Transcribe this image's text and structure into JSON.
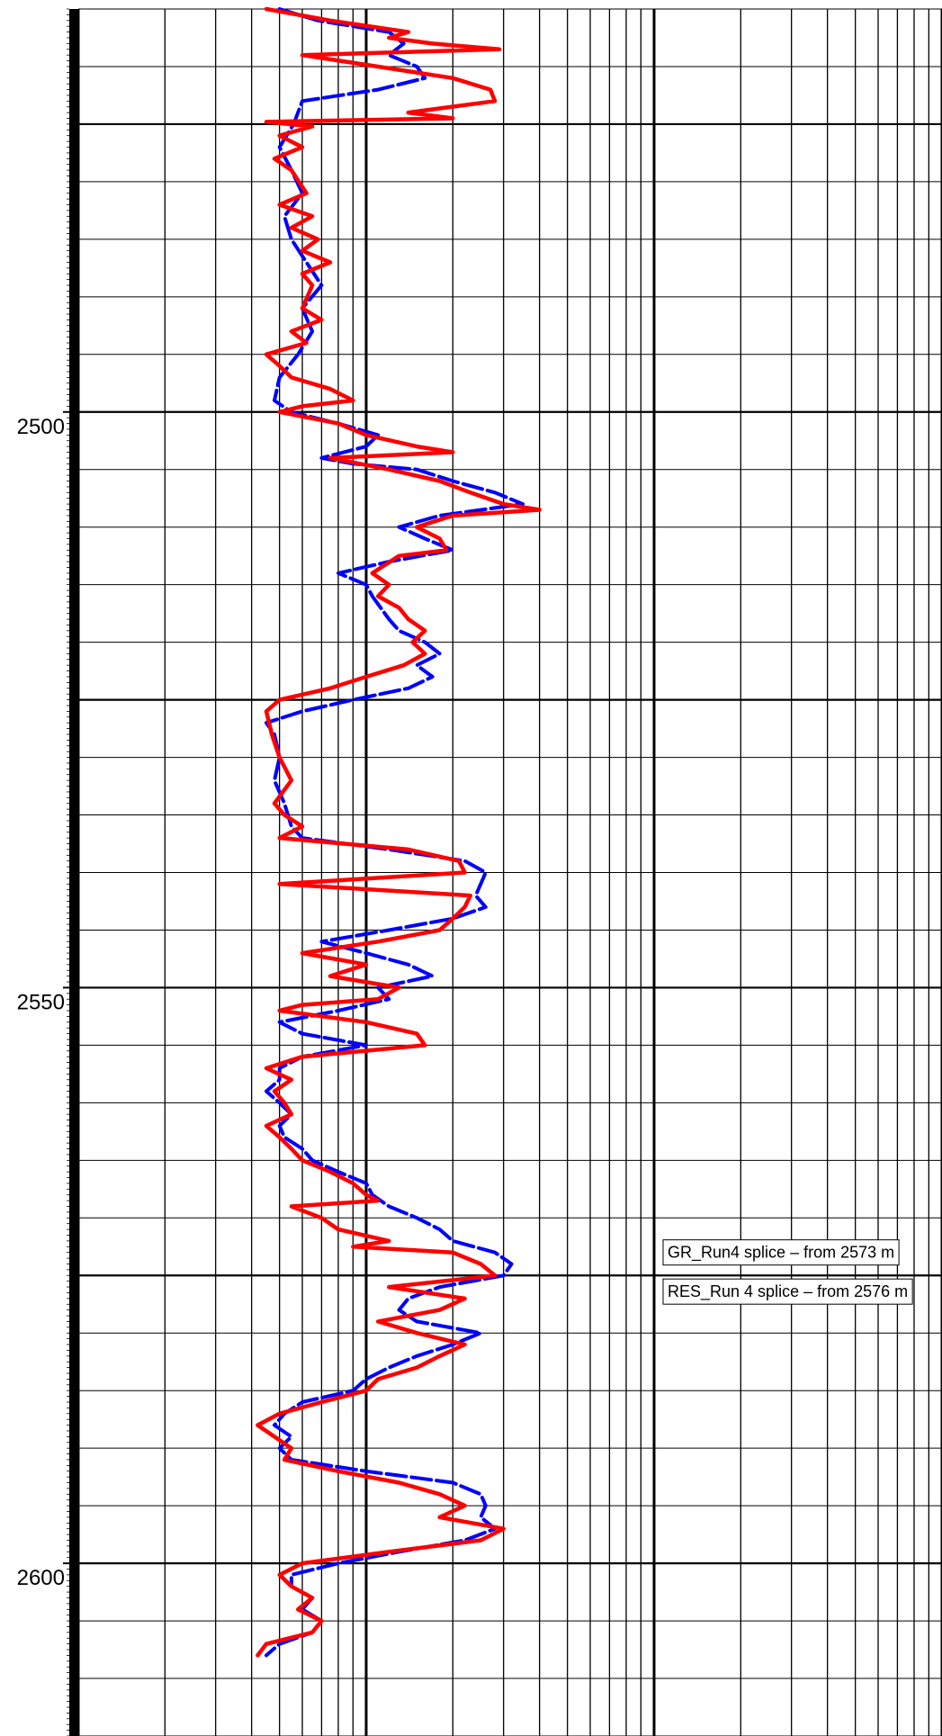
{
  "chart_data": {
    "type": "line",
    "title": "",
    "xlabel": "",
    "ylabel": "",
    "x_scale": "log",
    "xlim": [
      1,
      1000
    ],
    "ylim": [
      2465,
      2615
    ],
    "y_inverted": true,
    "y_ticks": [
      2500,
      2550,
      2600
    ],
    "grid": true,
    "annotations": [
      {
        "text": "GR_Run4  splice – from 2573 m",
        "x": 100,
        "y": 2573
      },
      {
        "text": "RES_Run 4 splice – from 2576 m",
        "x": 100,
        "y": 2576.4
      }
    ],
    "series": [
      {
        "color": "#0000ff",
        "style": "dashed",
        "points": [
          [
            5.0,
            2465
          ],
          [
            6.8,
            2466
          ],
          [
            12.0,
            2467
          ],
          [
            13.5,
            2468
          ],
          [
            12.0,
            2469
          ],
          [
            15.0,
            2470
          ],
          [
            16.0,
            2471
          ],
          [
            11.0,
            2472
          ],
          [
            6.0,
            2473
          ],
          [
            5.6,
            2475
          ],
          [
            5.0,
            2477
          ],
          [
            5.5,
            2479
          ],
          [
            6.0,
            2481
          ],
          [
            5.2,
            2483
          ],
          [
            5.5,
            2485
          ],
          [
            6.2,
            2487
          ],
          [
            7.0,
            2489
          ],
          [
            6.0,
            2491
          ],
          [
            6.5,
            2493
          ],
          [
            5.8,
            2495
          ],
          [
            5.0,
            2497
          ],
          [
            4.8,
            2499
          ],
          [
            5.5,
            2500
          ],
          [
            8.0,
            2501
          ],
          [
            11.0,
            2502
          ],
          [
            10.0,
            2503
          ],
          [
            7.0,
            2504
          ],
          [
            9.0,
            2504.5
          ],
          [
            15.0,
            2505
          ],
          [
            20.0,
            2506
          ],
          [
            28.0,
            2507
          ],
          [
            35.0,
            2508
          ],
          [
            18.0,
            2509
          ],
          [
            13.0,
            2510
          ],
          [
            16.0,
            2511
          ],
          [
            20.0,
            2512
          ],
          [
            12.0,
            2513
          ],
          [
            8.0,
            2514
          ],
          [
            10.0,
            2515
          ],
          [
            10.5,
            2516
          ],
          [
            12.0,
            2518
          ],
          [
            13.0,
            2519
          ],
          [
            16.0,
            2520
          ],
          [
            18.0,
            2521
          ],
          [
            15.0,
            2522
          ],
          [
            17.0,
            2523
          ],
          [
            14.0,
            2524
          ],
          [
            9.0,
            2525
          ],
          [
            6.0,
            2526
          ],
          [
            4.5,
            2527
          ],
          [
            4.8,
            2528
          ],
          [
            5.0,
            2530
          ],
          [
            4.8,
            2532
          ],
          [
            5.2,
            2534
          ],
          [
            5.5,
            2536
          ],
          [
            6.0,
            2537
          ],
          [
            12.0,
            2538
          ],
          [
            22.0,
            2539
          ],
          [
            26.0,
            2540
          ],
          [
            25.0,
            2541
          ],
          [
            24.0,
            2542
          ],
          [
            26.0,
            2543
          ],
          [
            20.0,
            2544
          ],
          [
            12.0,
            2545
          ],
          [
            7.0,
            2546
          ],
          [
            10.0,
            2547
          ],
          [
            14.0,
            2548
          ],
          [
            17.0,
            2549
          ],
          [
            11.0,
            2550
          ],
          [
            12.0,
            2551
          ],
          [
            8.0,
            2552
          ],
          [
            5.0,
            2553
          ],
          [
            6.0,
            2554
          ],
          [
            10.0,
            2555
          ],
          [
            6.0,
            2556
          ],
          [
            5.0,
            2557
          ],
          [
            5.0,
            2558
          ],
          [
            4.5,
            2559
          ],
          [
            5.0,
            2560
          ],
          [
            5.5,
            2561
          ],
          [
            5.0,
            2562
          ],
          [
            5.2,
            2563
          ],
          [
            6.0,
            2564
          ],
          [
            6.5,
            2565
          ],
          [
            8.0,
            2566
          ],
          [
            10.0,
            2567
          ],
          [
            10.5,
            2568
          ],
          [
            12.0,
            2569
          ],
          [
            15.0,
            2570
          ],
          [
            18.0,
            2571
          ],
          [
            20.0,
            2572
          ],
          [
            28.0,
            2573
          ],
          [
            32.0,
            2574
          ],
          [
            30.0,
            2575
          ],
          [
            18.0,
            2576
          ],
          [
            14.0,
            2577
          ],
          [
            13.0,
            2578
          ],
          [
            15.0,
            2579
          ],
          [
            25.0,
            2580
          ],
          [
            20.0,
            2581
          ],
          [
            15.0,
            2582
          ],
          [
            12.0,
            2583
          ],
          [
            10.0,
            2584
          ],
          [
            9.0,
            2585
          ],
          [
            6.0,
            2586
          ],
          [
            5.2,
            2587
          ],
          [
            4.8,
            2588
          ],
          [
            5.5,
            2589
          ],
          [
            5.0,
            2590
          ],
          [
            5.5,
            2591
          ],
          [
            10.0,
            2592
          ],
          [
            20.0,
            2593
          ],
          [
            25.0,
            2594
          ],
          [
            26.0,
            2595
          ],
          [
            25.0,
            2596
          ],
          [
            28.0,
            2597
          ],
          [
            22.0,
            2598
          ],
          [
            13.0,
            2599
          ],
          [
            8.0,
            2600
          ],
          [
            5.5,
            2601
          ],
          [
            5.5,
            2602
          ],
          [
            6.5,
            2603
          ],
          [
            6.0,
            2604
          ],
          [
            7.0,
            2605
          ],
          [
            6.5,
            2606
          ],
          [
            5.0,
            2607
          ],
          [
            4.5,
            2608
          ]
        ]
      },
      {
        "color": "#ff0000",
        "style": "solid",
        "points": [
          [
            4.5,
            2465
          ],
          [
            7.5,
            2466
          ],
          [
            14.0,
            2467
          ],
          [
            12.0,
            2467.5
          ],
          [
            17.0,
            2468
          ],
          [
            29.0,
            2468.5
          ],
          [
            6.0,
            2469
          ],
          [
            11.0,
            2470
          ],
          [
            20.0,
            2471
          ],
          [
            27.0,
            2472
          ],
          [
            28.0,
            2473
          ],
          [
            14.0,
            2474
          ],
          [
            20.0,
            2474.5
          ],
          [
            4.5,
            2474.8
          ],
          [
            6.5,
            2475.2
          ],
          [
            5.0,
            2476
          ],
          [
            6.0,
            2477
          ],
          [
            4.8,
            2478
          ],
          [
            5.5,
            2479
          ],
          [
            6.2,
            2481
          ],
          [
            5.0,
            2482
          ],
          [
            6.5,
            2483
          ],
          [
            5.5,
            2484
          ],
          [
            6.8,
            2485
          ],
          [
            6.0,
            2486
          ],
          [
            7.5,
            2487
          ],
          [
            6.0,
            2488
          ],
          [
            6.5,
            2489
          ],
          [
            6.0,
            2491
          ],
          [
            7.0,
            2492
          ],
          [
            5.5,
            2493
          ],
          [
            6.2,
            2494
          ],
          [
            4.5,
            2495
          ],
          [
            5.0,
            2496
          ],
          [
            5.5,
            2497
          ],
          [
            7.5,
            2498
          ],
          [
            9.0,
            2499
          ],
          [
            6.0,
            2499.5
          ],
          [
            5.0,
            2500
          ],
          [
            8.0,
            2501
          ],
          [
            10.0,
            2502
          ],
          [
            15.0,
            2503
          ],
          [
            20.0,
            2503.5
          ],
          [
            7.5,
            2504
          ],
          [
            12.0,
            2505
          ],
          [
            18.0,
            2506
          ],
          [
            23.0,
            2507
          ],
          [
            30.0,
            2508
          ],
          [
            40.0,
            2508.5
          ],
          [
            20.0,
            2509
          ],
          [
            15.0,
            2510
          ],
          [
            18.0,
            2511
          ],
          [
            19.0,
            2512
          ],
          [
            13.0,
            2512.5
          ],
          [
            10.5,
            2514
          ],
          [
            12.0,
            2515
          ],
          [
            11.0,
            2516
          ],
          [
            13.0,
            2517
          ],
          [
            14.0,
            2518
          ],
          [
            16.0,
            2519
          ],
          [
            14.5,
            2520
          ],
          [
            16.0,
            2521
          ],
          [
            13.5,
            2522
          ],
          [
            10.0,
            2523
          ],
          [
            7.5,
            2524
          ],
          [
            5.0,
            2525
          ],
          [
            4.5,
            2526
          ],
          [
            4.7,
            2528
          ],
          [
            5.0,
            2530
          ],
          [
            5.5,
            2532
          ],
          [
            4.8,
            2534
          ],
          [
            5.2,
            2535
          ],
          [
            6.0,
            2536
          ],
          [
            5.0,
            2537
          ],
          [
            14.0,
            2538
          ],
          [
            21.0,
            2539
          ],
          [
            22.0,
            2540
          ],
          [
            5.0,
            2541
          ],
          [
            23.0,
            2542
          ],
          [
            22.0,
            2543
          ],
          [
            20.0,
            2544
          ],
          [
            18.0,
            2545
          ],
          [
            11.0,
            2546
          ],
          [
            6.0,
            2547
          ],
          [
            10.0,
            2548
          ],
          [
            7.5,
            2549
          ],
          [
            13.0,
            2550
          ],
          [
            11.0,
            2551
          ],
          [
            6.0,
            2551.5
          ],
          [
            5.0,
            2552
          ],
          [
            10.0,
            2553
          ],
          [
            15.0,
            2554
          ],
          [
            16.0,
            2555
          ],
          [
            6.0,
            2556
          ],
          [
            4.5,
            2557
          ],
          [
            5.5,
            2558
          ],
          [
            4.8,
            2559
          ],
          [
            5.2,
            2560
          ],
          [
            5.5,
            2561
          ],
          [
            4.5,
            2562
          ],
          [
            5.0,
            2563
          ],
          [
            5.5,
            2564
          ],
          [
            6.0,
            2565
          ],
          [
            7.5,
            2566
          ],
          [
            9.0,
            2567
          ],
          [
            10.0,
            2568
          ],
          [
            11.0,
            2568.5
          ],
          [
            5.5,
            2569
          ],
          [
            7.0,
            2570
          ],
          [
            8.0,
            2571
          ],
          [
            12.0,
            2572
          ],
          [
            9.0,
            2572.5
          ],
          [
            20.0,
            2573
          ],
          [
            25.0,
            2574
          ],
          [
            28.0,
            2575
          ],
          [
            12.0,
            2576
          ],
          [
            22.0,
            2577
          ],
          [
            18.0,
            2578
          ],
          [
            11.0,
            2579
          ],
          [
            15.0,
            2580
          ],
          [
            22.0,
            2581
          ],
          [
            18.0,
            2582
          ],
          [
            15.0,
            2583
          ],
          [
            11.0,
            2584
          ],
          [
            10.0,
            2585
          ],
          [
            7.0,
            2586
          ],
          [
            5.0,
            2587
          ],
          [
            4.2,
            2588
          ],
          [
            4.8,
            2589
          ],
          [
            5.5,
            2590
          ],
          [
            5.2,
            2591
          ],
          [
            8.0,
            2592
          ],
          [
            13.0,
            2593
          ],
          [
            18.0,
            2594
          ],
          [
            22.0,
            2595
          ],
          [
            18.0,
            2596
          ],
          [
            30.0,
            2597
          ],
          [
            25.0,
            2598
          ],
          [
            12.0,
            2599
          ],
          [
            6.0,
            2600
          ],
          [
            5.0,
            2601
          ],
          [
            5.5,
            2602
          ],
          [
            6.5,
            2603
          ],
          [
            5.8,
            2604
          ],
          [
            7.0,
            2605
          ],
          [
            6.5,
            2606
          ],
          [
            4.5,
            2607
          ],
          [
            4.2,
            2608
          ]
        ]
      }
    ]
  }
}
